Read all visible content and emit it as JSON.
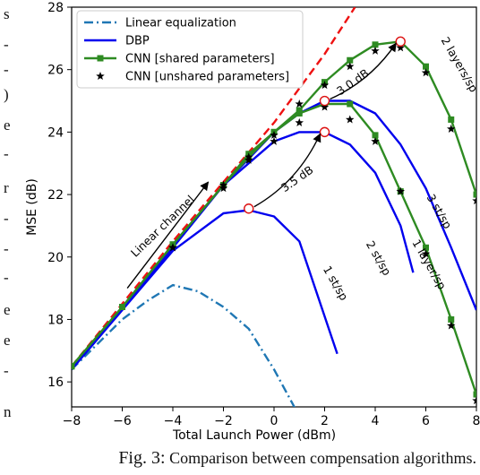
{
  "left_column_text": [
    "s",
    "-",
    "-",
    ")",
    "e",
    "-",
    "r",
    "-",
    "-",
    "-",
    "e",
    "e",
    "-",
    "n"
  ],
  "caption": {
    "label": "Fig. 3:",
    "text": "Comparison between compensation algorithms."
  },
  "chart_data": {
    "type": "line",
    "xlabel": "Total Launch Power (dBm)",
    "ylabel": "MSE (dB)",
    "xlim": [
      -8,
      8
    ],
    "ylim": [
      15.2,
      28
    ],
    "xticks": [
      -8,
      -6,
      -4,
      -2,
      0,
      2,
      4,
      6,
      8
    ],
    "yticks": [
      16,
      18,
      20,
      22,
      24,
      26,
      28
    ],
    "grid": false,
    "legend_position": "top-left",
    "legend": [
      {
        "label": "Linear equalization",
        "color": "#1f77b4",
        "style": "dashdot"
      },
      {
        "label": "DBP",
        "color": "#0000ee",
        "style": "solid"
      },
      {
        "label": "CNN [shared parameters]",
        "color": "#2e8b22",
        "style": "solid-square"
      },
      {
        "label": "CNN [unshared parameters]",
        "color": "#000000",
        "style": "star"
      }
    ],
    "series": [
      {
        "name": "Linear equalization",
        "color": "#1f77b4",
        "dash": "dashdot",
        "x": [
          -8,
          -7,
          -6,
          -5,
          -4,
          -3,
          -2,
          -1,
          0,
          1
        ],
        "y": [
          16.4,
          17.2,
          18.0,
          18.6,
          19.1,
          18.9,
          18.4,
          17.7,
          16.4,
          14.9
        ]
      },
      {
        "color": "#ee1111",
        "dash": "dash",
        "x": [
          -8,
          -6,
          -4,
          -2,
          0,
          2,
          3.2
        ],
        "y": [
          16.5,
          18.5,
          20.5,
          22.4,
          24.3,
          26.5,
          28.0
        ]
      },
      {
        "color": "#0000ee",
        "x": [
          -8,
          -6,
          -4,
          -2,
          -1,
          0,
          1,
          2.5
        ],
        "y": [
          16.4,
          18.3,
          20.2,
          21.4,
          21.5,
          21.3,
          20.5,
          16.9
        ]
      },
      {
        "color": "#0000ee",
        "x": [
          -8,
          -6,
          -4,
          -2,
          0,
          1,
          2,
          3,
          4,
          5,
          5.5
        ],
        "y": [
          16.4,
          18.4,
          20.3,
          22.3,
          23.7,
          24.0,
          24.0,
          23.6,
          22.7,
          21.0,
          19.5
        ]
      },
      {
        "color": "#0000ee",
        "x": [
          -8,
          -6,
          -4,
          -2,
          0,
          1,
          2,
          3,
          4,
          5,
          6,
          7,
          8
        ],
        "y": [
          16.4,
          18.4,
          20.3,
          22.3,
          24.0,
          24.6,
          25.0,
          25.0,
          24.6,
          23.6,
          22.2,
          20.3,
          18.3
        ]
      },
      {
        "name": "CNN [shared parameters]",
        "color": "#2e8b22",
        "marker": "square",
        "x": [
          -8,
          -6,
          -4,
          -2,
          -1,
          0,
          1,
          2,
          3,
          4,
          5,
          6,
          7,
          8
        ],
        "y": [
          16.5,
          18.4,
          20.4,
          22.3,
          23.2,
          24.0,
          24.6,
          24.9,
          24.9,
          23.9,
          22.1,
          20.3,
          18.0,
          15.6
        ]
      },
      {
        "name": "CNN [shared parameters]",
        "color": "#2e8b22",
        "marker": "square",
        "x": [
          -8,
          -6,
          -4,
          -2,
          -1,
          0,
          1,
          2,
          3,
          4,
          5,
          6,
          7,
          8
        ],
        "y": [
          16.5,
          18.4,
          20.4,
          22.3,
          23.3,
          24.0,
          24.7,
          25.6,
          26.3,
          26.8,
          26.9,
          26.1,
          24.4,
          22.0
        ]
      },
      {
        "name": "CNN [unshared parameters]",
        "color": "#000000",
        "marker": "star",
        "line": false,
        "x": [
          -4,
          -2,
          -1,
          0,
          1,
          2,
          3,
          4,
          5,
          6,
          7,
          8
        ],
        "y": [
          20.3,
          22.2,
          23.1,
          23.7,
          24.3,
          24.8,
          24.4,
          23.7,
          22.1,
          20.1,
          17.8,
          15.4
        ]
      },
      {
        "name": "CNN [unshared parameters]",
        "color": "#000000",
        "marker": "star",
        "line": false,
        "x": [
          -4,
          -2,
          -1,
          0,
          1,
          2,
          3,
          4,
          5,
          6,
          7,
          8
        ],
        "y": [
          20.3,
          22.3,
          23.2,
          23.9,
          24.9,
          25.5,
          26.1,
          26.6,
          26.7,
          25.9,
          24.1,
          21.8
        ]
      }
    ],
    "highlight_points": [
      {
        "x": -1,
        "y": 21.55
      },
      {
        "x": 2,
        "y": 24.0
      },
      {
        "x": 2,
        "y": 25.0
      },
      {
        "x": 5,
        "y": 26.9
      }
    ],
    "annotations": [
      {
        "text": "Linear channel",
        "x": -4.3,
        "y": 20.9,
        "rotate": -44
      },
      {
        "text": "3.5 dB",
        "x": 1.0,
        "y": 22.4,
        "rotate": -35
      },
      {
        "text": "3.0 dB",
        "x": 3.2,
        "y": 25.5,
        "rotate": -35
      },
      {
        "text": "1 st/sp",
        "x": 2.3,
        "y": 19.1,
        "rotate": 60
      },
      {
        "text": "2 st/sp",
        "x": 4.0,
        "y": 19.9,
        "rotate": 60
      },
      {
        "text": "3 st/sp",
        "x": 6.4,
        "y": 21.4,
        "rotate": 60
      },
      {
        "text": "1 layer/sp",
        "x": 6.0,
        "y": 19.7,
        "rotate": 60
      },
      {
        "text": "2 layers/sp",
        "x": 7.2,
        "y": 26.1,
        "rotate": 60
      }
    ]
  }
}
